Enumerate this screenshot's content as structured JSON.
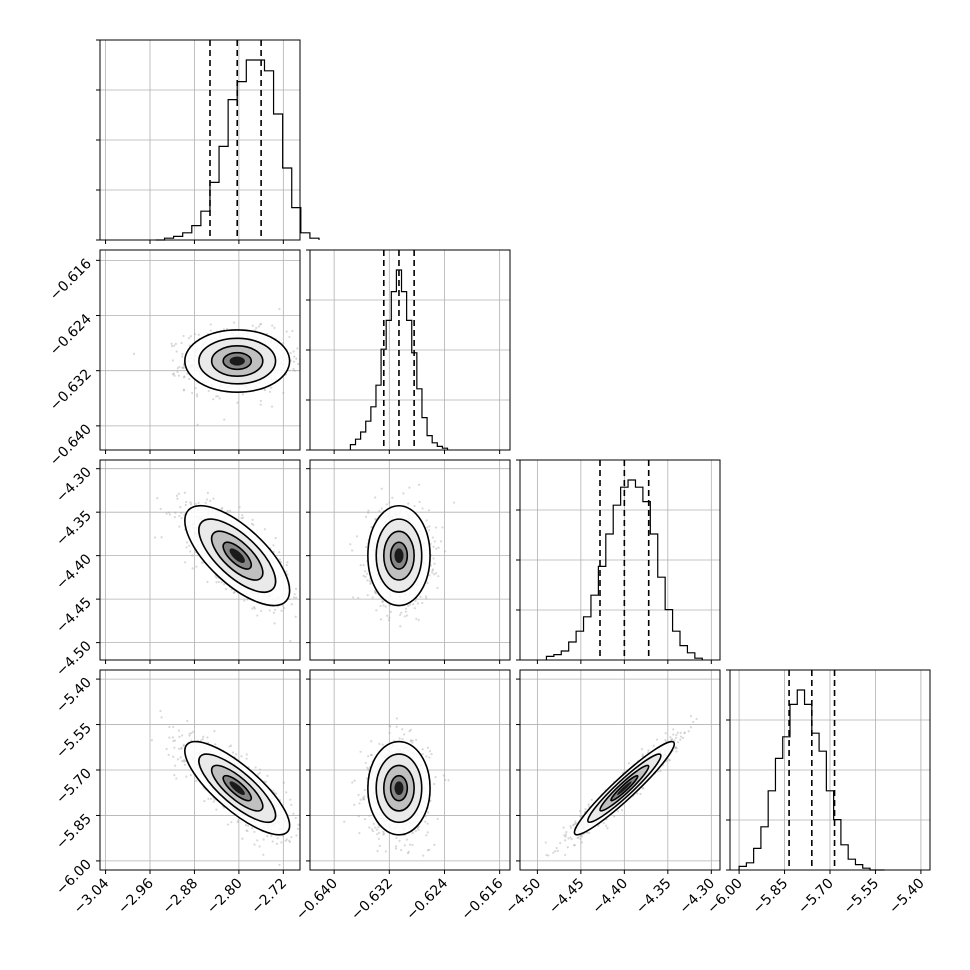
{
  "chart_data": {
    "type": "corner",
    "parameters": [
      {
        "index": 0,
        "range": [
          -3.05,
          -2.69
        ],
        "ticks": [
          "−3.04",
          "−2.96",
          "−2.88",
          "−2.80",
          "−2.72"
        ],
        "tick_values": [
          -3.04,
          -2.96,
          -2.88,
          -2.8,
          -2.72
        ],
        "quantiles": [
          -2.852,
          -2.803,
          -2.76
        ],
        "median": -2.803,
        "sigma": 0.046
      },
      {
        "index": 1,
        "range": [
          -0.6435,
          -0.6145
        ],
        "ticks": [
          "−0.640",
          "−0.632",
          "−0.624",
          "−0.616"
        ],
        "tick_values": [
          -0.64,
          -0.632,
          -0.624,
          -0.616
        ],
        "quantiles": [
          -0.6328,
          -0.6306,
          -0.6284
        ],
        "median": -0.6306,
        "sigma": 0.0022
      },
      {
        "index": 2,
        "range": [
          -4.52,
          -4.29
        ],
        "ticks": [
          "−4.50",
          "−4.45",
          "−4.40",
          "−4.35",
          "−4.30"
        ],
        "tick_values": [
          -4.5,
          -4.45,
          -4.4,
          -4.35,
          -4.3
        ],
        "quantiles": [
          -4.428,
          -4.4,
          -4.372
        ],
        "median": -4.4,
        "sigma": 0.028
      },
      {
        "index": 3,
        "range": [
          -6.03,
          -5.37
        ],
        "ticks": [
          "−6.00",
          "−5.85",
          "−5.70",
          "−5.55",
          "−5.40"
        ],
        "tick_values": [
          -6.0,
          -5.85,
          -5.7,
          -5.55,
          -5.4
        ],
        "quantiles": [
          -5.835,
          -5.76,
          -5.685
        ],
        "median": -5.76,
        "sigma": 0.075
      }
    ],
    "correlations": {
      "0-1": 0.0,
      "0-2": -0.7,
      "0-3": -0.8,
      "1-2": 0.0,
      "1-3": 0.0,
      "2-3": 0.95
    },
    "histograms": [
      [
        0,
        1,
        2,
        4,
        8,
        16,
        32,
        52,
        78,
        88,
        100,
        100,
        94,
        70,
        40,
        18,
        4,
        1
      ],
      [
        3,
        6,
        10,
        16,
        24,
        36,
        56,
        72,
        88,
        100,
        88,
        72,
        54,
        34,
        18,
        8,
        4,
        2,
        1
      ],
      [
        2,
        3,
        5,
        10,
        16,
        24,
        36,
        52,
        70,
        86,
        96,
        100,
        96,
        88,
        70,
        46,
        28,
        16,
        8,
        4,
        1
      ],
      [
        2,
        4,
        12,
        24,
        44,
        62,
        74,
        92,
        100,
        92,
        76,
        66,
        44,
        28,
        14,
        6,
        3,
        1,
        0,
        0
      ]
    ],
    "contour_levels": [
      "0.5σ",
      "1σ",
      "1.5σ",
      "2σ"
    ],
    "grid": true,
    "title": "",
    "xlabel": "",
    "ylabel": ""
  },
  "colors": {
    "ink": "#000000",
    "grid": "#b0b0b0",
    "scatter": "#a9a9a9"
  }
}
